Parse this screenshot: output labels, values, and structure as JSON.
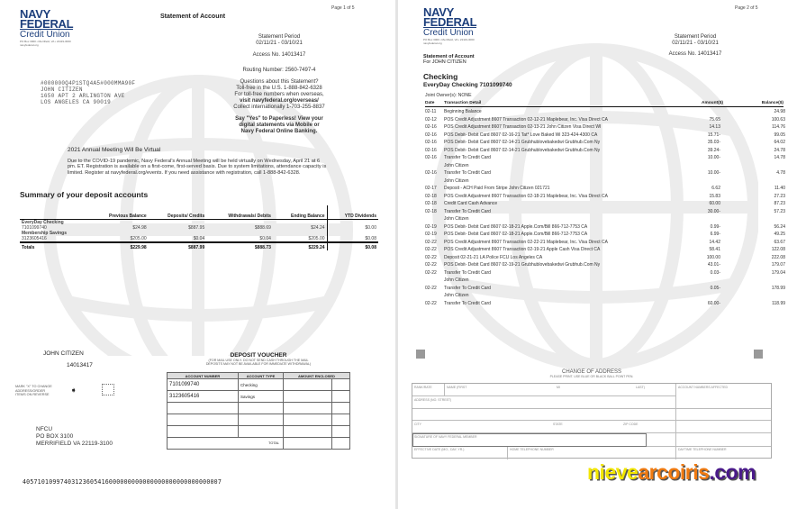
{
  "logo": {
    "line1": "NAVY",
    "line2": "FEDERAL",
    "line3": "Credit Union",
    "address": "PO Box 3000 • Merrifield, VA • 22119-3000",
    "url": "navyfederal.org"
  },
  "page1": {
    "page_num": "Page 1 of 5",
    "title": "Statement of Account",
    "period_label": "Statement Period",
    "period": "02/11/21 - 03/10/21",
    "access": "Access No. 14013417",
    "routing": "Routing Number: 2560-7497-4",
    "questions": [
      "Questions about this Statement?",
      "Toll-free in the U.S. 1-888-842-6328",
      "For toll-free numbers when overseas,",
      "visit navyfederal.org/overseas/",
      "Collect internationally 1-703-255-8837"
    ],
    "paperless": [
      "Say \"Yes\" to Paperless! View your",
      "digital statements via Mobile or",
      "Navy Federal Online Banking."
    ],
    "mail_address": [
      "#000000Q4P1STQ4A5#000MMA90F",
      "JOHN CITIZEN",
      "1650 APT 2 ARLINGTON AVE",
      "LOS ANGELES CA 90019"
    ],
    "notice_title": "2021 Annual Meeting Will Be Virtual",
    "notice_body": "Due to the COVID-19 pandemic, Navy Federal's Annual Meeting will be held virtually on Wednesday, April 21 at 6 pm. ET. Registration is available on a first-come, first-served basis. Due to system limitations, attendance capacity is limited. Register at navyfederal.org/events. If you need assistance with registration, call 1-888-842-6328.",
    "summary_title": "Summary of your deposit accounts",
    "summary_headers": [
      "",
      "Previous Balance",
      "Deposits/ Credits",
      "Withdrawals/ Debits",
      "Ending Balance",
      "YTD Dividends"
    ],
    "summary_rows": [
      {
        "name": "EveryDay Checking",
        "acct": "7101099740",
        "vals": [
          "$24.98",
          "$887.95",
          "$888.69",
          "$24.24",
          "$0.00"
        ]
      },
      {
        "name": "Membership Savings",
        "acct": "3123605416",
        "vals": [
          "$205.00",
          "$0.04",
          "$0.04",
          "$205.00",
          "$0.08"
        ]
      }
    ],
    "summary_totals": {
      "label": "Totals",
      "vals": [
        "$229.98",
        "$887.99",
        "$888.73",
        "$229.24",
        "$0.08"
      ]
    },
    "voucher_name": "JOHN CITIZEN",
    "voucher_access": "14013417",
    "mark_x": [
      "MARK \"X\" TO CHANGE",
      "ADDRESS/ORDER",
      "ITEMS ON REVERSE"
    ],
    "voucher_title": "DEPOSIT VOUCHER",
    "voucher_note": [
      "(FOR MAIL USE ONLY. DO NOT SEND CASH THROUGH THE MAIL",
      "DEPOSITS MAY NOT BE AVAILABLE FOR IMMEDIATE WITHDRAWAL)"
    ],
    "voucher_headers": [
      "ACCOUNT NUMBER",
      "ACCOUNT TYPE",
      "AMOUNT ENCLOSED"
    ],
    "voucher_rows": [
      [
        "7101099740",
        "Checking"
      ],
      [
        "3123605416",
        "Savings"
      ]
    ],
    "voucher_total": "TOTAL",
    "return_address": [
      "NFCU",
      "PO BOX 3100",
      "MERRIFIELD VA 22119-3100"
    ],
    "micr": "40571010997403123605416000000000000000000000000000007"
  },
  "page2": {
    "page_num": "Page 2 of 5",
    "title": "Statement of Account",
    "for": "For JOHN CITIZEN",
    "period_label": "Statement Period",
    "period": "02/11/21 - 03/10/21",
    "access": "Access No. 14013417",
    "section": "Checking",
    "account": "EveryDay Checking 7101099740",
    "joint": "Joint Owner(s):  NONE",
    "headers": {
      "date": "Date",
      "detail": "Transaction Detail",
      "amount": "Amount($)",
      "balance": "Balance($)"
    },
    "transactions": [
      [
        "02-11",
        "Beginning Balance",
        "",
        "24.98"
      ],
      [
        "02-12",
        "POS Credit Adjustment 8607 Transaction 02-12-21 Maplebear, Inc. Visa Direct CA",
        "75.65",
        "100.63"
      ],
      [
        "02-16",
        "POS Credit Adjustment 8607 Transaction 02-13-21 John Citizen Visa Direct WI",
        "14.13",
        "114.76"
      ],
      [
        "02-16",
        "POS Debit- Debit Card 8607 02-16-21 Tat* Love Baked Wi 323-424-4300 CA",
        "15.71-",
        "99.05"
      ],
      [
        "02-16",
        "POS Debit- Debit Card 8607 02-14-21 Grubhublovebakedwi Grubhub.Com Ny",
        "35.03-",
        "64.02"
      ],
      [
        "02-16",
        "POS Debit- Debit Card 8607 02-14-21 Grubhublovebakedwi Grubhub.Com Ny",
        "39.24-",
        "24.78"
      ],
      [
        "02-16",
        "Transfer To Credit Card",
        "10.00-",
        "14.78"
      ],
      [
        "",
        "John Citizen",
        "",
        ""
      ],
      [
        "02-16",
        "Transfer To Credit Card",
        "10.00-",
        "4.78"
      ],
      [
        "",
        "John Citizen",
        "",
        ""
      ],
      [
        "02-17",
        "Deposit - ACH Paid From Stripe John Citizen 021721",
        "6.62",
        "11.40"
      ],
      [
        "02-18",
        "POS Credit Adjustment 8607 Transaction 02-18-21 Maplebear, Inc. Visa Direct CA",
        "15.83",
        "27.23"
      ],
      [
        "02-18",
        "Credit Card Cash Advance",
        "60.00",
        "87.23"
      ],
      [
        "02-18",
        "Transfer To Credit Card",
        "30.00-",
        "57.23"
      ],
      [
        "",
        "John Citizen",
        "",
        ""
      ],
      [
        "02-19",
        "POS Debit- Debit Card 8607 02-18-21 Apple.Com/Bill 866-712-7753 CA",
        "0.99-",
        "56.24"
      ],
      [
        "02-19",
        "POS Debit- Debit Card 8607 02-18-21 Apple.Com/Bill 866-712-7753 CA",
        "6.99-",
        "49.25"
      ],
      [
        "02-22",
        "POS Credit Adjustment 8607 Transaction 02-22-21 Maplebear, Inc. Visa Direct CA",
        "14.42",
        "63.67"
      ],
      [
        "02-22",
        "POS Credit Adjustment 8607 Transaction 02-19-21 Apple Cash Visa Direct CA",
        "58.41",
        "122.08"
      ],
      [
        "02-22",
        "Deposit 02-21-21 LA Police FCU Los Angeles CA",
        "100.00",
        "222.08"
      ],
      [
        "02-22",
        "POS Debit- Debit Card 8607 02-19-21 Grubhublovebakedwi Grubhub.Com Ny",
        "43.01-",
        "179.07"
      ],
      [
        "02-22",
        "Transfer To Credit Card",
        "0.03-",
        "179.04"
      ],
      [
        "",
        "John Citizen",
        "",
        ""
      ],
      [
        "02-22",
        "Transfer To Credit Card",
        "0.05-",
        "178.99"
      ],
      [
        "",
        "John Citizen",
        "",
        ""
      ],
      [
        "02-22",
        "Transfer To Credit Card",
        "60.00-",
        "118.99"
      ]
    ],
    "coa": {
      "title": "CHANGE OF ADDRESS",
      "subtitle": "PLEASE PRINT.  USE BLUE OR BLACK BALL POINT PEN.",
      "rank": "RANK/RATE",
      "first": "NAME (FIRST",
      "mi": "MI",
      "last": "LAST)",
      "accounts": "ACCOUNT NUMBERS AFFECTED",
      "street": "ADDRESS (NO.  STREET)",
      "city": "CITY",
      "state": "STATE",
      "zip": "ZIP CODE",
      "signature": "SIGNATURE OF NAVY FEDERAL MEMBER",
      "effective": "EFFECTIVE DATE (MO., DAY, YR.)",
      "home_phone": "HOME TELEPHONE NUMBER",
      "day_phone": "DAYTIME TELEPHONE NUMBER"
    }
  },
  "watermark": {
    "part1": "nieve",
    "part2": "arcoiris",
    "part3": ".com",
    "colors": [
      "#f2e600",
      "#f07a10",
      "#4a1a8a"
    ]
  }
}
